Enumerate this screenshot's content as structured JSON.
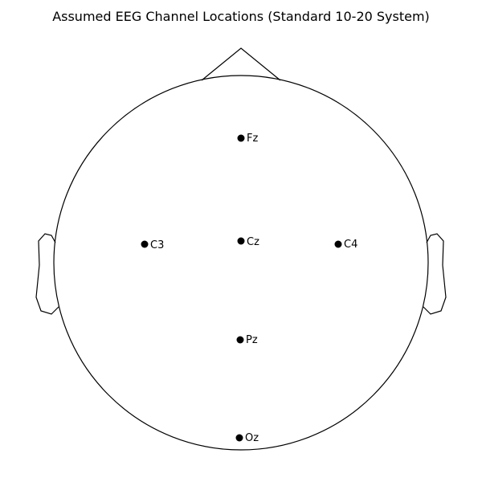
{
  "title": "Assumed EEG Channel Locations (Standard 10-20 System)",
  "colors": {
    "outline": "#000000",
    "electrode": "#000000",
    "background": "#ffffff"
  },
  "electrodes": [
    {
      "label": "Fz"
    },
    {
      "label": "C3"
    },
    {
      "label": "Cz"
    },
    {
      "label": "C4"
    },
    {
      "label": "Pz"
    },
    {
      "label": "Oz"
    }
  ]
}
